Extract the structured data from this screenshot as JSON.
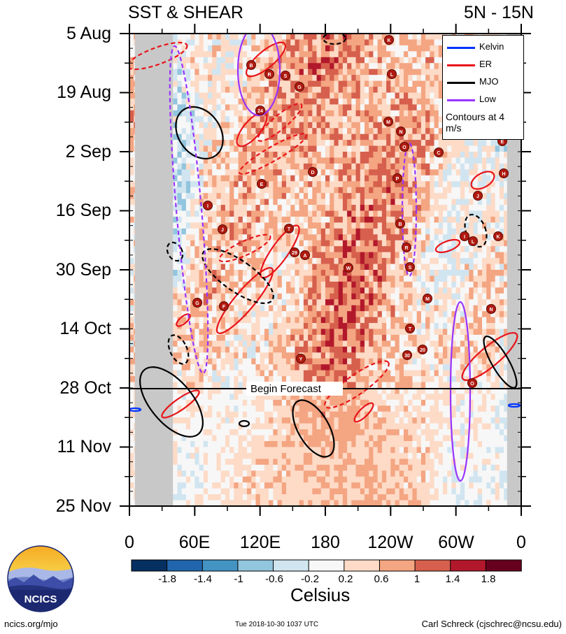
{
  "header": {
    "title_left": "SST & SHEAR",
    "title_right": "5N - 15N"
  },
  "chart_data": {
    "type": "heatmap",
    "title": "SST & SHEAR",
    "subtitle": "5N - 15N",
    "y_tick_labels": [
      "5 Aug",
      "19 Aug",
      "2 Sep",
      "16 Sep",
      "30 Sep",
      "14 Oct",
      "28 Oct",
      "11 Nov",
      "25 Nov"
    ],
    "x_tick_labels": [
      "0",
      "60E",
      "120E",
      "180",
      "120W",
      "60W",
      "0"
    ],
    "x_range_deg_east": [
      0,
      360
    ],
    "forecast_label": "Begin Forecast",
    "forecast_start": "28 Oct",
    "colorbar": {
      "label": "Celsius",
      "levels": [
        -1.8,
        -1.4,
        -1,
        -0.6,
        -0.2,
        0.2,
        0.6,
        1,
        1.4,
        1.8
      ],
      "tick_labels": [
        "-1.8",
        "-1.4",
        "-1",
        "-0.6",
        "-0.2",
        "0.2",
        "0.6",
        "1",
        "1.4",
        "1.8"
      ],
      "colors": [
        "#053061",
        "#2166ac",
        "#4393c3",
        "#92c5de",
        "#d1e5f0",
        "#f7f7f7",
        "#fddbc7",
        "#f4a582",
        "#d6604d",
        "#b2182b",
        "#67001f"
      ]
    },
    "legend": [
      {
        "name": "Kelvin",
        "color": "#0033ff"
      },
      {
        "name": "ER",
        "color": "#e8141a"
      },
      {
        "name": "MJO",
        "color": "#000000"
      },
      {
        "name": "Low",
        "color": "#9933ff"
      }
    ],
    "contour_note": "Contours at 4 m/s",
    "land_mask_color": "#c8c8c8",
    "storm_markers": [
      "B",
      "R",
      "S",
      "G",
      "K",
      "L",
      "M",
      "N",
      "O",
      "P",
      "E",
      "H",
      "J",
      "I",
      "T",
      "24",
      "29",
      "W",
      "Y",
      "R",
      "S",
      "M",
      "T",
      "20",
      "30",
      "O",
      "N",
      "K",
      "L",
      "I",
      "J",
      "F",
      "G",
      "D",
      "E",
      "A",
      "B",
      "C"
    ]
  },
  "branding": {
    "logo_text": "NCICS",
    "url": "ncics.org/mjo",
    "timestamp": "Tue 2018-10-30 1037 UTC",
    "author": "Carl Schreck (cjschrec@ncsu.edu)"
  }
}
